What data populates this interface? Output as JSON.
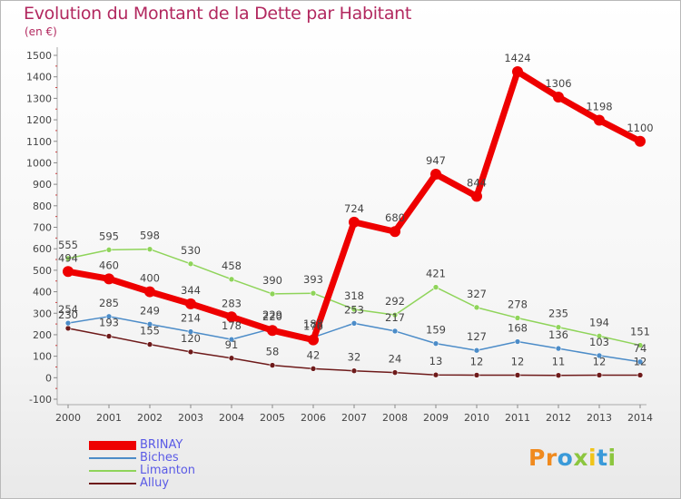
{
  "header": {
    "title": "Evolution du Montant de la Dette par Habitant",
    "subtitle": "(en €)"
  },
  "brand": {
    "letters": [
      "P",
      "r",
      "o",
      "x",
      "i",
      "t",
      "i"
    ],
    "colors": [
      "#f08a1e",
      "#f08a1e",
      "#3a9ad9",
      "#8cc63f",
      "#f0c419",
      "#3a9ad9",
      "#8cc63f"
    ]
  },
  "chart_data": {
    "type": "line",
    "title": "Evolution du Montant de la Dette par Habitant",
    "subtitle": "(en €)",
    "xlabel": "",
    "ylabel": "",
    "x": [
      2000,
      2001,
      2002,
      2003,
      2004,
      2005,
      2006,
      2007,
      2008,
      2009,
      2010,
      2011,
      2012,
      2013,
      2014
    ],
    "ylim": [
      -100,
      1500
    ],
    "yticks": [
      -100,
      0,
      100,
      200,
      300,
      400,
      500,
      600,
      700,
      800,
      900,
      1000,
      1100,
      1200,
      1300,
      1400,
      1500
    ],
    "grid": false,
    "legend_position": "bottom-left",
    "series": [
      {
        "name": "BRINAY",
        "color": "#ee0000",
        "values": [
          494,
          460,
          400,
          344,
          283,
          220,
          176,
          724,
          680,
          947,
          844,
          1424,
          1306,
          1198,
          1100
        ],
        "labels": [
          "494",
          "460",
          "400",
          "344",
          "283",
          "220",
          "176",
          "724",
          "680",
          "947",
          "844",
          "1424",
          "1306",
          "1198",
          "1100"
        ]
      },
      {
        "name": "Biches",
        "color": "#4c8cc8",
        "values": [
          254,
          285,
          249,
          214,
          178,
          229,
          188,
          253,
          217,
          159,
          127,
          168,
          136,
          103,
          74
        ],
        "labels": [
          "254",
          "285",
          "249",
          "214",
          "178",
          "229",
          "188",
          "253",
          "217",
          "159",
          "127",
          "168",
          "136",
          "103",
          "74"
        ]
      },
      {
        "name": "Limanton",
        "color": "#8fd45a",
        "values": [
          555,
          595,
          598,
          530,
          458,
          390,
          393,
          318,
          292,
          421,
          327,
          278,
          235,
          194,
          151
        ],
        "labels": [
          "555",
          "595",
          "598",
          "530",
          "458",
          "390",
          "393",
          "318",
          "292",
          "421",
          "327",
          "278",
          "235",
          "194",
          "151"
        ]
      },
      {
        "name": "Alluy",
        "color": "#6e1a1a",
        "values": [
          230,
          193,
          155,
          120,
          91,
          58,
          42,
          32,
          24,
          13,
          12,
          12,
          11,
          12,
          12
        ],
        "labels": [
          "230",
          "193",
          "155",
          "120",
          "91",
          "58",
          "42",
          "32",
          "24",
          "13",
          "12",
          "12",
          "11",
          "12",
          "12"
        ]
      }
    ]
  }
}
